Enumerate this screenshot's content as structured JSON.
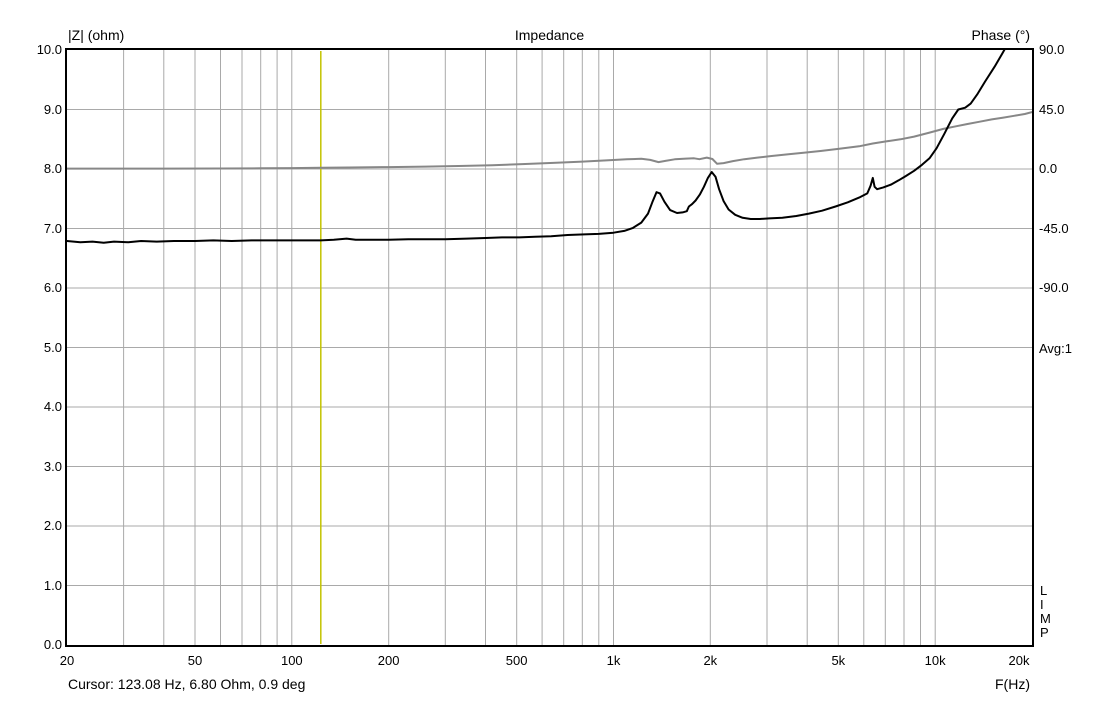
{
  "header": {
    "y_left_label": "|Z| (ohm)",
    "title": "Impedance",
    "y_right_label": "Phase (°)"
  },
  "side": {
    "avg_label": "Avg:1",
    "app_watermark": "L\nI\nM\nP"
  },
  "footer": {
    "x_axis_label": "F(Hz)",
    "cursor_status": "Cursor: 123.08 Hz, 6.80 Ohm, 0.9 deg"
  },
  "chart_data": {
    "type": "line",
    "title": "Impedance",
    "x_axis": {
      "label": "F(Hz)",
      "scale": "log",
      "min": 20,
      "max": 20000,
      "tick_values": [
        20,
        50,
        100,
        200,
        500,
        1000,
        2000,
        5000,
        10000,
        20000
      ],
      "tick_labels": [
        "20",
        "50",
        "100",
        "200",
        "500",
        "1k",
        "2k",
        "5k",
        "10k",
        "20k"
      ],
      "gridline_values": [
        30,
        40,
        50,
        60,
        70,
        80,
        90,
        100,
        200,
        300,
        400,
        500,
        600,
        700,
        800,
        900,
        1000,
        2000,
        3000,
        4000,
        5000,
        6000,
        7000,
        8000,
        9000,
        10000
      ]
    },
    "y_left_axis": {
      "label": "|Z| (ohm)",
      "min": 0,
      "max": 10,
      "tick_values": [
        10,
        9,
        8,
        7,
        6,
        5,
        4,
        3,
        2,
        1,
        0
      ],
      "tick_labels": [
        "10.0",
        "9.0",
        "8.0",
        "7.0",
        "6.0",
        "5.0",
        "4.0",
        "3.0",
        "2.0",
        "1.0",
        "0.0"
      ],
      "grid_values": [
        9,
        8,
        7,
        6,
        5,
        4,
        3,
        2,
        1
      ]
    },
    "y_right_axis": {
      "label": "Phase (°)",
      "deg_per_div": 45,
      "zero_at_left_value": 8,
      "tick_values": [
        90,
        45,
        0,
        -45,
        -90
      ],
      "tick_labels": [
        "90.0",
        "45.0",
        "0.0",
        "-45.0",
        "-90.0"
      ]
    },
    "grid": true,
    "legend_position": "none",
    "averages": 1,
    "cursor": {
      "freq_hz": 123.08,
      "z_ohm": 6.8,
      "phase_deg": 0.9,
      "status_text": "Cursor: 123.08 Hz, 6.80 Ohm, 0.9 deg"
    },
    "colors": {
      "impedance_curve": "#000000",
      "phase_curve": "#878787",
      "gridline": "#a9a9a9",
      "border": "#000000",
      "cursor_line": "#c3c300",
      "background": "#ffffff"
    },
    "series": [
      {
        "name": "impedance_magnitude_ohm",
        "axis": "left",
        "color": "#000000",
        "points": [
          [
            20,
            6.79
          ],
          [
            22,
            6.77
          ],
          [
            24,
            6.78
          ],
          [
            26,
            6.76
          ],
          [
            28,
            6.78
          ],
          [
            31,
            6.77
          ],
          [
            34,
            6.79
          ],
          [
            38,
            6.78
          ],
          [
            43,
            6.79
          ],
          [
            50,
            6.79
          ],
          [
            57,
            6.8
          ],
          [
            65,
            6.79
          ],
          [
            75,
            6.8
          ],
          [
            87,
            6.8
          ],
          [
            100,
            6.8
          ],
          [
            112,
            6.8
          ],
          [
            123.08,
            6.8
          ],
          [
            135,
            6.81
          ],
          [
            148,
            6.83
          ],
          [
            158,
            6.81
          ],
          [
            175,
            6.81
          ],
          [
            200,
            6.81
          ],
          [
            230,
            6.82
          ],
          [
            265,
            6.82
          ],
          [
            300,
            6.82
          ],
          [
            350,
            6.83
          ],
          [
            400,
            6.84
          ],
          [
            450,
            6.85
          ],
          [
            510,
            6.85
          ],
          [
            570,
            6.86
          ],
          [
            640,
            6.87
          ],
          [
            720,
            6.89
          ],
          [
            810,
            6.9
          ],
          [
            900,
            6.91
          ],
          [
            1000,
            6.93
          ],
          [
            1080,
            6.96
          ],
          [
            1150,
            7.01
          ],
          [
            1220,
            7.1
          ],
          [
            1280,
            7.25
          ],
          [
            1320,
            7.44
          ],
          [
            1360,
            7.61
          ],
          [
            1395,
            7.59
          ],
          [
            1440,
            7.45
          ],
          [
            1500,
            7.31
          ],
          [
            1576,
            7.26
          ],
          [
            1640,
            7.27
          ],
          [
            1690,
            7.29
          ],
          [
            1715,
            7.37
          ],
          [
            1755,
            7.41
          ],
          [
            1800,
            7.47
          ],
          [
            1855,
            7.57
          ],
          [
            1910,
            7.7
          ],
          [
            1965,
            7.85
          ],
          [
            2020,
            7.95
          ],
          [
            2075,
            7.87
          ],
          [
            2130,
            7.66
          ],
          [
            2200,
            7.46
          ],
          [
            2280,
            7.32
          ],
          [
            2390,
            7.23
          ],
          [
            2520,
            7.18
          ],
          [
            2670,
            7.16
          ],
          [
            2850,
            7.16
          ],
          [
            3050,
            7.17
          ],
          [
            3350,
            7.18
          ],
          [
            3700,
            7.21
          ],
          [
            4050,
            7.25
          ],
          [
            4450,
            7.3
          ],
          [
            4900,
            7.37
          ],
          [
            5350,
            7.44
          ],
          [
            5800,
            7.52
          ],
          [
            6150,
            7.59
          ],
          [
            6300,
            7.72
          ],
          [
            6400,
            7.85
          ],
          [
            6480,
            7.7
          ],
          [
            6600,
            7.66
          ],
          [
            6900,
            7.69
          ],
          [
            7300,
            7.74
          ],
          [
            7700,
            7.81
          ],
          [
            8100,
            7.88
          ],
          [
            8600,
            7.97
          ],
          [
            9100,
            8.07
          ],
          [
            9600,
            8.18
          ],
          [
            10100,
            8.35
          ],
          [
            10700,
            8.6
          ],
          [
            11300,
            8.85
          ],
          [
            11800,
            9.0
          ],
          [
            12400,
            9.03
          ],
          [
            12900,
            9.1
          ],
          [
            13500,
            9.25
          ],
          [
            14300,
            9.47
          ],
          [
            15300,
            9.72
          ],
          [
            16200,
            9.95
          ],
          [
            16800,
            10.1
          ]
        ]
      },
      {
        "name": "phase_deg",
        "axis": "right",
        "color": "#878787",
        "points": [
          [
            20,
            0.3
          ],
          [
            40,
            0.3
          ],
          [
            60,
            0.4
          ],
          [
            80,
            0.5
          ],
          [
            100,
            0.7
          ],
          [
            123.08,
            0.9
          ],
          [
            150,
            1.1
          ],
          [
            200,
            1.4
          ],
          [
            260,
            1.8
          ],
          [
            330,
            2.3
          ],
          [
            420,
            2.9
          ],
          [
            520,
            3.7
          ],
          [
            650,
            4.6
          ],
          [
            800,
            5.6
          ],
          [
            950,
            6.5
          ],
          [
            1100,
            7.3
          ],
          [
            1220,
            7.7
          ],
          [
            1300,
            6.9
          ],
          [
            1380,
            5.2
          ],
          [
            1450,
            6.1
          ],
          [
            1550,
            7.3
          ],
          [
            1680,
            7.9
          ],
          [
            1780,
            8.1
          ],
          [
            1850,
            7.4
          ],
          [
            1950,
            8.6
          ],
          [
            2030,
            7.6
          ],
          [
            2100,
            3.9
          ],
          [
            2200,
            4.5
          ],
          [
            2350,
            6.0
          ],
          [
            2550,
            7.4
          ],
          [
            2800,
            8.6
          ],
          [
            3100,
            9.8
          ],
          [
            3500,
            11.1
          ],
          [
            3900,
            12.3
          ],
          [
            4400,
            13.6
          ],
          [
            5000,
            15.2
          ],
          [
            5800,
            17.2
          ],
          [
            6400,
            19.3
          ],
          [
            7000,
            20.8
          ],
          [
            7800,
            22.5
          ],
          [
            8600,
            24.5
          ],
          [
            9600,
            27.5
          ],
          [
            10600,
            30.3
          ],
          [
            11600,
            32.3
          ],
          [
            12600,
            34.0
          ],
          [
            13700,
            35.7
          ],
          [
            15000,
            37.5
          ],
          [
            16300,
            38.9
          ],
          [
            17600,
            40.2
          ],
          [
            19000,
            41.6
          ],
          [
            20000,
            43.0
          ]
        ]
      }
    ]
  }
}
